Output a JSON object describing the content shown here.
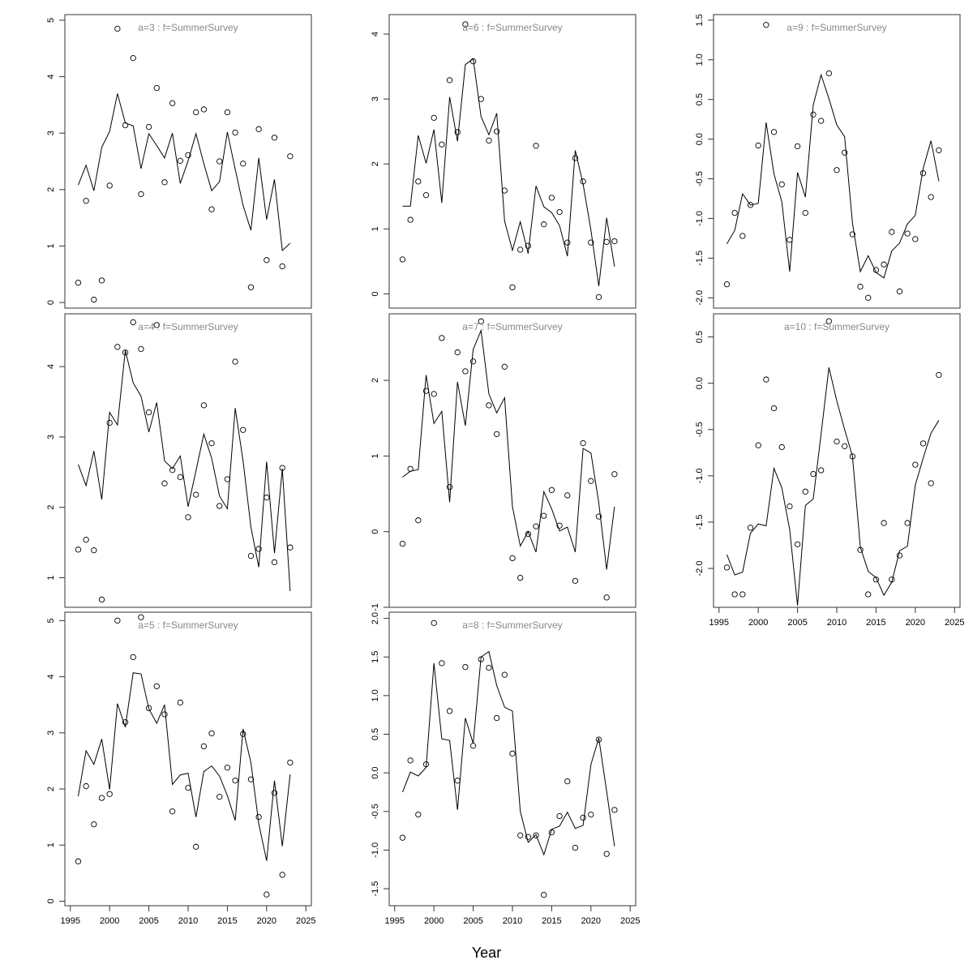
{
  "xlabel": "Year",
  "chart_data": [
    {
      "type": "line",
      "title": "a=3  :  f=SummerSurvey",
      "x": [
        1996,
        1997,
        1998,
        1999,
        2000,
        2001,
        2002,
        2003,
        2004,
        2005,
        2006,
        2007,
        2008,
        2009,
        2010,
        2011,
        2012,
        2013,
        2014,
        2015,
        2016,
        2017,
        2018,
        2019,
        2020,
        2021,
        2022,
        2023
      ],
      "series": [
        {
          "kind": "points",
          "values": [
            0.35,
            1.8,
            0.05,
            0.39,
            2.07,
            4.85,
            3.14,
            4.33,
            1.92,
            3.11,
            3.8,
            2.13,
            3.53,
            2.51,
            2.61,
            3.37,
            3.42,
            1.65,
            2.5,
            3.37,
            3.01,
            2.46,
            0.27,
            3.07,
            0.75,
            2.92,
            0.64,
            2.59
          ]
        },
        {
          "kind": "line",
          "values": [
            2.08,
            2.43,
            1.98,
            2.75,
            3.03,
            3.7,
            3.18,
            3.13,
            2.37,
            2.99,
            2.78,
            2.56,
            3.0,
            2.11,
            2.51,
            2.99,
            2.46,
            1.98,
            2.14,
            3.02,
            2.36,
            1.72,
            1.28,
            2.56,
            1.47,
            2.18,
            0.92,
            1.05
          ]
        }
      ],
      "ylim": [
        -0.1,
        5.1
      ],
      "yticks": [
        0,
        1,
        2,
        3,
        4,
        5
      ],
      "xlim": [
        1994.3,
        2025.7
      ],
      "xticks": [],
      "grid": false
    },
    {
      "type": "line",
      "title": "a=6  :  f=SummerSurvey",
      "x": [
        1996,
        1997,
        1998,
        1999,
        2000,
        2001,
        2002,
        2003,
        2004,
        2005,
        2006,
        2007,
        2008,
        2009,
        2010,
        2011,
        2012,
        2013,
        2014,
        2015,
        2016,
        2017,
        2018,
        2019,
        2020,
        2021,
        2022,
        2023
      ],
      "series": [
        {
          "kind": "points",
          "values": [
            0.53,
            1.14,
            1.73,
            1.52,
            2.71,
            2.3,
            3.29,
            2.49,
            4.15,
            3.58,
            3.0,
            2.36,
            2.5,
            1.59,
            0.1,
            0.68,
            0.74,
            2.28,
            1.07,
            1.48,
            1.26,
            0.79,
            2.09,
            1.73,
            0.79,
            -0.05,
            0.8,
            0.81
          ]
        },
        {
          "kind": "line",
          "values": [
            1.35,
            1.35,
            2.44,
            2.01,
            2.53,
            1.4,
            3.03,
            2.35,
            3.53,
            3.62,
            2.73,
            2.45,
            2.78,
            1.12,
            0.67,
            1.11,
            0.62,
            1.66,
            1.34,
            1.25,
            1.05,
            0.58,
            2.21,
            1.69,
            0.98,
            0.12,
            1.17,
            0.42
          ]
        }
      ],
      "ylim": [
        -0.22,
        4.3
      ],
      "yticks": [
        0,
        1,
        2,
        3,
        4
      ],
      "xlim": [
        1994.3,
        2025.7
      ],
      "xticks": [],
      "grid": false
    },
    {
      "type": "line",
      "title": "a=9  :  f=SummerSurvey",
      "x": [
        1996,
        1997,
        1998,
        1999,
        2000,
        2001,
        2002,
        2003,
        2004,
        2005,
        2006,
        2007,
        2008,
        2009,
        2010,
        2011,
        2012,
        2013,
        2014,
        2015,
        2016,
        2017,
        2018,
        2019,
        2020,
        2021,
        2022,
        2023
      ],
      "series": [
        {
          "kind": "points",
          "values": [
            -1.83,
            -0.93,
            -1.22,
            -0.83,
            -0.08,
            1.44,
            0.09,
            -0.57,
            -1.27,
            -0.09,
            -0.93,
            0.31,
            0.23,
            0.83,
            -0.39,
            -0.17,
            -1.2,
            -1.86,
            -2.0,
            -1.65,
            -1.58,
            -1.17,
            -1.92,
            -1.19,
            -1.26,
            -0.43,
            -0.73,
            -0.14
          ]
        },
        {
          "kind": "line",
          "values": [
            -1.32,
            -1.15,
            -0.69,
            -0.83,
            -0.81,
            0.21,
            -0.44,
            -0.79,
            -1.67,
            -0.42,
            -0.73,
            0.43,
            0.81,
            0.51,
            0.18,
            0.03,
            -1.06,
            -1.67,
            -1.47,
            -1.68,
            -1.75,
            -1.41,
            -1.31,
            -1.07,
            -0.96,
            -0.37,
            -0.02,
            -0.53
          ]
        }
      ],
      "ylim": [
        -2.13,
        1.57
      ],
      "yticks": [
        -2.0,
        -1.5,
        -1.0,
        -0.5,
        0.0,
        0.5,
        1.0,
        1.5
      ],
      "xlim": [
        1994.3,
        2025.7
      ],
      "xticks": [],
      "grid": false
    },
    {
      "type": "line",
      "title": "a=4  :  f=SummerSurvey",
      "x": [
        1996,
        1997,
        1998,
        1999,
        2000,
        2001,
        2002,
        2003,
        2004,
        2005,
        2006,
        2007,
        2008,
        2009,
        2010,
        2011,
        2012,
        2013,
        2014,
        2015,
        2016,
        2017,
        2018,
        2019,
        2020,
        2021,
        2022,
        2023
      ],
      "series": [
        {
          "kind": "points",
          "values": [
            1.4,
            1.54,
            1.39,
            0.69,
            3.2,
            4.28,
            4.2,
            4.63,
            4.25,
            3.35,
            4.59,
            2.34,
            2.53,
            2.43,
            1.86,
            2.18,
            3.45,
            2.91,
            2.02,
            2.4,
            4.07,
            3.1,
            1.31,
            1.41,
            2.14,
            1.22,
            2.56,
            1.43
          ]
        },
        {
          "kind": "line",
          "values": [
            2.61,
            2.31,
            2.8,
            2.11,
            3.35,
            3.17,
            4.23,
            3.77,
            3.58,
            3.07,
            3.49,
            2.66,
            2.55,
            2.73,
            2.01,
            2.52,
            3.04,
            2.7,
            2.16,
            1.98,
            3.41,
            2.66,
            1.72,
            1.15,
            2.65,
            1.35,
            2.55,
            0.81
          ]
        }
      ],
      "ylim": [
        0.58,
        4.75
      ],
      "yticks": [
        1,
        2,
        3,
        4
      ],
      "xlim": [
        1994.3,
        2025.7
      ],
      "xticks": [],
      "grid": false
    },
    {
      "type": "line",
      "title": "a=7  :  f=SummerSurvey",
      "x": [
        1996,
        1997,
        1998,
        1999,
        2000,
        2001,
        2002,
        2003,
        2004,
        2005,
        2006,
        2007,
        2008,
        2009,
        2010,
        2011,
        2012,
        2013,
        2014,
        2015,
        2016,
        2017,
        2018,
        2019,
        2020,
        2021,
        2022,
        2023
      ],
      "series": [
        {
          "kind": "points",
          "values": [
            -0.16,
            0.83,
            0.15,
            1.86,
            1.82,
            2.56,
            0.59,
            2.37,
            2.12,
            2.25,
            2.78,
            1.67,
            1.29,
            2.18,
            -0.35,
            -0.61,
            -0.03,
            0.07,
            0.21,
            0.55,
            0.08,
            0.48,
            -0.65,
            1.17,
            0.67,
            0.2,
            -0.87,
            0.76
          ]
        },
        {
          "kind": "line",
          "values": [
            0.72,
            0.8,
            0.82,
            2.07,
            1.43,
            1.59,
            0.39,
            1.98,
            1.4,
            2.41,
            2.66,
            1.82,
            1.57,
            1.77,
            0.33,
            -0.19,
            0.0,
            -0.27,
            0.53,
            0.3,
            0.01,
            0.06,
            -0.27,
            1.1,
            1.04,
            0.38,
            -0.5,
            0.33
          ]
        }
      ],
      "ylim": [
        -1.0,
        2.88
      ],
      "yticks": [
        -1,
        0,
        1,
        2
      ],
      "xlim": [
        1994.3,
        2025.7
      ],
      "xticks": [],
      "grid": false
    },
    {
      "type": "line",
      "title": "a=10  :  f=SummerSurvey",
      "x": [
        1996,
        1997,
        1998,
        1999,
        2000,
        2001,
        2002,
        2003,
        2004,
        2005,
        2006,
        2007,
        2008,
        2009,
        2010,
        2011,
        2012,
        2013,
        2014,
        2015,
        2016,
        2017,
        2018,
        2019,
        2020,
        2021,
        2022,
        2023
      ],
      "series": [
        {
          "kind": "points",
          "values": [
            -1.99,
            -2.28,
            -2.28,
            -1.56,
            -0.67,
            0.04,
            -0.27,
            -0.69,
            -1.33,
            -1.74,
            -1.17,
            -0.98,
            -0.94,
            0.67,
            -0.63,
            -0.68,
            -0.79,
            -1.8,
            -2.28,
            -2.12,
            -1.51,
            -2.12,
            -1.86,
            -1.51,
            -0.88,
            -0.65,
            -1.08,
            0.09
          ]
        },
        {
          "kind": "line",
          "values": [
            -1.85,
            -2.07,
            -2.04,
            -1.62,
            -1.52,
            -1.54,
            -0.92,
            -1.13,
            -1.58,
            -2.4,
            -1.32,
            -1.25,
            -0.55,
            0.17,
            -0.19,
            -0.5,
            -0.79,
            -1.77,
            -2.03,
            -2.1,
            -2.29,
            -2.15,
            -1.81,
            -1.76,
            -1.1,
            -0.81,
            -0.54,
            -0.4
          ]
        }
      ],
      "ylim": [
        -2.42,
        0.75
      ],
      "yticks": [
        -2.0,
        -1.5,
        -1.0,
        -0.5,
        0.0,
        0.5
      ],
      "xlim": [
        1994.3,
        2025.7
      ],
      "xticks": [
        1995,
        2000,
        2005,
        2010,
        2015,
        2020,
        2025
      ],
      "grid": false
    },
    {
      "type": "line",
      "title": "a=5  :  f=SummerSurvey",
      "x": [
        1996,
        1997,
        1998,
        1999,
        2000,
        2001,
        2002,
        2003,
        2004,
        2005,
        2006,
        2007,
        2008,
        2009,
        2010,
        2011,
        2012,
        2013,
        2014,
        2015,
        2016,
        2017,
        2018,
        2019,
        2020,
        2021,
        2022,
        2023
      ],
      "series": [
        {
          "kind": "points",
          "values": [
            0.71,
            2.05,
            1.37,
            1.84,
            1.91,
            5.0,
            3.19,
            4.35,
            5.06,
            3.44,
            3.83,
            3.33,
            1.6,
            3.54,
            2.02,
            0.97,
            2.76,
            2.99,
            1.86,
            2.38,
            2.15,
            2.98,
            2.17,
            1.5,
            0.12,
            1.93,
            0.47,
            2.47
          ]
        },
        {
          "kind": "line",
          "values": [
            1.87,
            2.68,
            2.44,
            2.89,
            1.99,
            3.52,
            3.1,
            4.07,
            4.05,
            3.43,
            3.17,
            3.5,
            2.08,
            2.25,
            2.28,
            1.5,
            2.31,
            2.41,
            2.23,
            1.88,
            1.44,
            3.07,
            2.47,
            1.38,
            0.72,
            2.15,
            0.98,
            2.26
          ]
        }
      ],
      "ylim": [
        -0.08,
        5.15
      ],
      "yticks": [
        0,
        1,
        2,
        3,
        4,
        5
      ],
      "xlim": [
        1994.3,
        2025.7
      ],
      "xticks": [
        1995,
        2000,
        2005,
        2010,
        2015,
        2020,
        2025
      ],
      "grid": false
    },
    {
      "type": "line",
      "title": "a=8  :  f=SummerSurvey",
      "x": [
        1996,
        1997,
        1998,
        1999,
        2000,
        2001,
        2002,
        2003,
        2004,
        2005,
        2006,
        2007,
        2008,
        2009,
        2010,
        2011,
        2012,
        2013,
        2014,
        2015,
        2016,
        2017,
        2018,
        2019,
        2020,
        2021,
        2022,
        2023
      ],
      "series": [
        {
          "kind": "points",
          "values": [
            -0.84,
            0.16,
            -0.54,
            0.11,
            1.94,
            1.42,
            0.8,
            -0.1,
            1.37,
            0.35,
            1.47,
            1.36,
            0.71,
            1.27,
            0.25,
            -0.81,
            -0.83,
            -0.81,
            -1.58,
            -0.77,
            -0.56,
            -0.11,
            -0.97,
            -0.58,
            -0.54,
            0.43,
            -1.05,
            -0.48
          ]
        },
        {
          "kind": "line",
          "values": [
            -0.25,
            0.01,
            -0.04,
            0.07,
            1.42,
            0.44,
            0.42,
            -0.48,
            0.71,
            0.38,
            1.5,
            1.57,
            1.13,
            0.85,
            0.8,
            -0.5,
            -0.9,
            -0.8,
            -1.06,
            -0.73,
            -0.69,
            -0.51,
            -0.72,
            -0.68,
            0.11,
            0.45,
            -0.24,
            -0.95
          ]
        }
      ],
      "ylim": [
        -1.72,
        2.08
      ],
      "yticks": [
        -1.5,
        -1.0,
        -0.5,
        0.0,
        0.5,
        1.0,
        1.5,
        2.0
      ],
      "xlim": [
        1994.3,
        2025.7
      ],
      "xticks": [
        1995,
        2000,
        2005,
        2010,
        2015,
        2020,
        2025
      ],
      "grid": false
    }
  ]
}
